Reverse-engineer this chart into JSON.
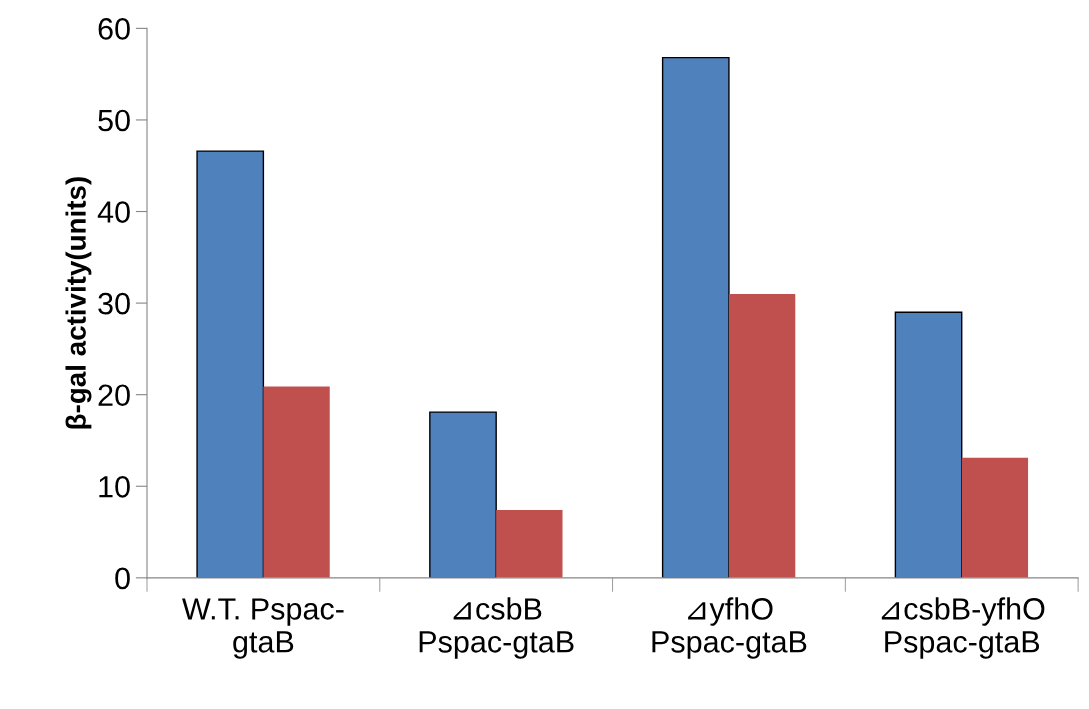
{
  "chart_data": {
    "type": "bar",
    "ylabel": "β-gal activity(units)",
    "categories": [
      "W.T. Pspac-\ngtaB",
      "⊿csbB\nPspac-gtaB",
      "⊿yfhO\nPspac-gtaB",
      "⊿csbB-yfhO\nPspac-gtaB"
    ],
    "series": [
      {
        "color": "#4f81bd",
        "values": [
          46.6,
          18.1,
          56.8,
          29.0
        ]
      },
      {
        "color": "#c0504d",
        "values": [
          20.9,
          7.4,
          31.0,
          13.1
        ]
      }
    ],
    "ylim": [
      0,
      60
    ],
    "yticks": [
      0,
      10,
      20,
      30,
      40,
      50,
      60
    ],
    "grid": false,
    "legend": false
  }
}
